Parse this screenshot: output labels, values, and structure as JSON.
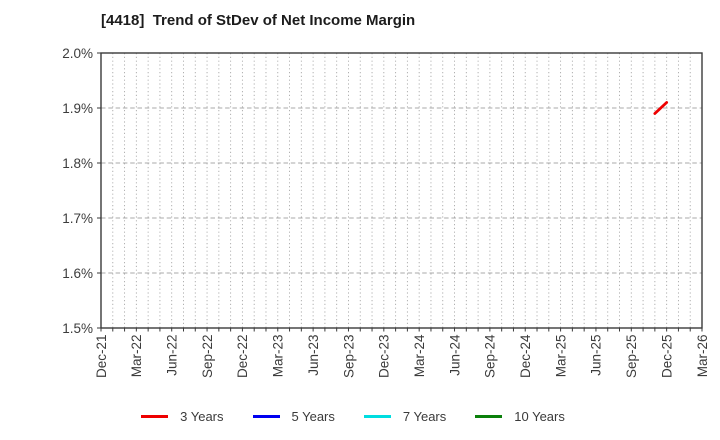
{
  "chart": {
    "title": "[4418]  Trend of StDev of Net Income Margin"
  },
  "chart_data": {
    "type": "line",
    "title": "[4418]  Trend of StDev of Net Income Margin",
    "x_axis": {
      "unit": "month",
      "start_label": "Dec-21",
      "end_label": "Mar-26",
      "months_total": 51,
      "tick_labels": [
        "Dec-21",
        "Mar-22",
        "Jun-22",
        "Sep-22",
        "Dec-22",
        "Mar-23",
        "Jun-23",
        "Sep-23",
        "Dec-23",
        "Mar-24",
        "Jun-24",
        "Sep-24",
        "Dec-24",
        "Mar-25",
        "Jun-25",
        "Sep-25",
        "Dec-25",
        "Mar-26"
      ],
      "tick_month_index": [
        0,
        3,
        6,
        9,
        12,
        15,
        18,
        21,
        24,
        27,
        30,
        33,
        36,
        39,
        42,
        45,
        48,
        51
      ],
      "grid_style": "dotted-monthly"
    },
    "y_axis": {
      "ylim": [
        1.5,
        2.0
      ],
      "tick_values": [
        1.5,
        1.6,
        1.7,
        1.8,
        1.9,
        2.0
      ],
      "tick_labels": [
        "1.5%",
        "1.6%",
        "1.7%",
        "1.8%",
        "1.9%",
        "2.0%"
      ],
      "grid_style": "dashed"
    },
    "series": [
      {
        "name": "3 Years",
        "color": "#ee0000",
        "points": [
          {
            "x_label": "Nov-25",
            "month_index": 47,
            "value": 1.89
          },
          {
            "x_label": "Dec-25",
            "month_index": 48,
            "value": 1.91
          }
        ]
      },
      {
        "name": "5 Years",
        "color": "#0000f0",
        "points": []
      },
      {
        "name": "7 Years",
        "color": "#00dde0",
        "points": []
      },
      {
        "name": "10 Years",
        "color": "#0b800b",
        "points": []
      }
    ],
    "legend_position": "bottom-center",
    "grid": true
  },
  "style": {
    "spine_color": "#3a3a3a",
    "grid_color": "#a8a8a8",
    "tick_text_color": "#3c3c3c",
    "title_color": "#1c1c1c",
    "background": "#ffffff"
  }
}
